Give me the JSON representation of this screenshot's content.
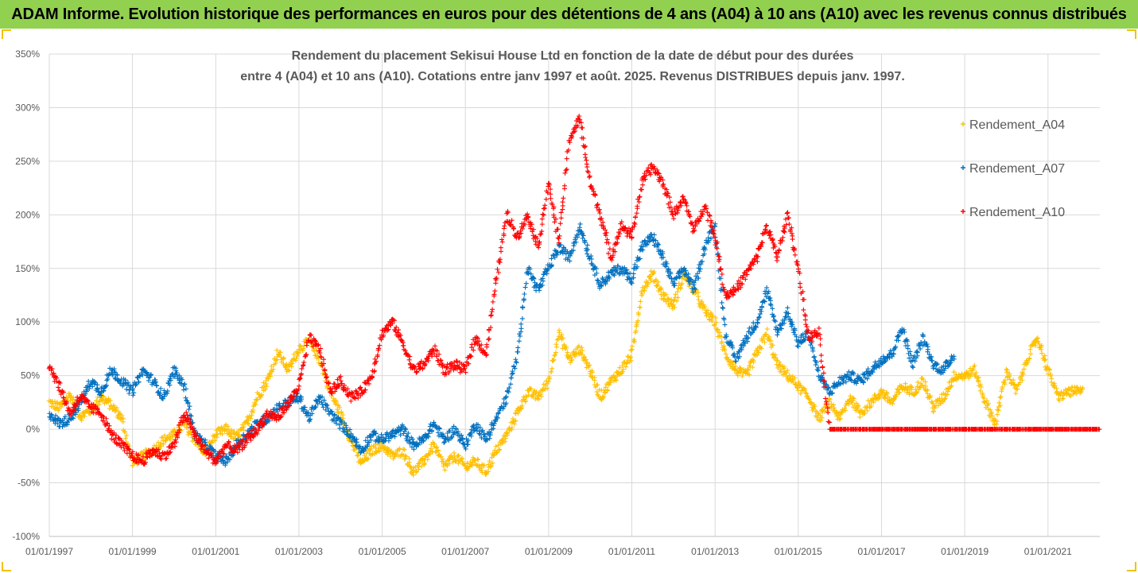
{
  "header": {
    "title": "ADAM Informe. Evolution historique des performances en euros pour des détentions de 4 ans (A04) à 10 ans (A10) avec les revenus connus distribués"
  },
  "colors": {
    "header_bg": "#92d050",
    "A04": "#ffc000",
    "A07": "#0070c0",
    "A10": "#ff0000",
    "grid": "#d9d9d9",
    "axis_text": "#595959"
  },
  "chart_data": {
    "type": "scatter",
    "marker": "plus",
    "title_line1": "Rendement du placement Sekisui House Ltd en fonction de la date de début pour des durées",
    "title_line2": "entre 4 (A04) et 10 ans (A10). Cotations entre janv 1997 et août. 2025. Revenus DISTRIBUES depuis janv. 1997.",
    "xlabel": "",
    "ylabel": "",
    "x_range": [
      "1997-01-01",
      "2022-04-01"
    ],
    "ylim": [
      -1.0,
      3.5
    ],
    "y_tick_labels": [
      "350%",
      "300%",
      "250%",
      "200%",
      "150%",
      "100%",
      "50%",
      "0%",
      "-50%",
      "-100%"
    ],
    "x_tick_labels": [
      "01/01/1997",
      "01/01/1999",
      "01/01/2001",
      "01/01/2003",
      "01/01/2005",
      "01/01/2007",
      "01/01/2009",
      "01/01/2011",
      "01/01/2013",
      "01/01/2015",
      "01/01/2017",
      "01/01/2019",
      "01/01/2021"
    ],
    "grid": true,
    "legend_position": "right",
    "series": [
      {
        "name": "Rendement_A04",
        "end": "2021-11-01",
        "points": [
          [
            "1997-01-01",
            0.25
          ],
          [
            "1997-04-01",
            0.2
          ],
          [
            "1997-07-01",
            0.32
          ],
          [
            "1997-10-01",
            0.12
          ],
          [
            "1998-01-01",
            0.18
          ],
          [
            "1998-04-01",
            0.3
          ],
          [
            "1998-07-01",
            0.22
          ],
          [
            "1998-10-01",
            0.1
          ],
          [
            "1999-01-01",
            -0.32
          ],
          [
            "1999-04-01",
            -0.25
          ],
          [
            "1999-07-01",
            -0.2
          ],
          [
            "1999-10-01",
            -0.1
          ],
          [
            "2000-01-01",
            -0.05
          ],
          [
            "2000-04-01",
            0.05
          ],
          [
            "2000-07-01",
            -0.1
          ],
          [
            "2000-10-01",
            -0.22
          ],
          [
            "2001-01-01",
            -0.05
          ],
          [
            "2001-04-01",
            0.0
          ],
          [
            "2001-07-01",
            -0.08
          ],
          [
            "2001-10-01",
            0.05
          ],
          [
            "2002-01-01",
            0.3
          ],
          [
            "2002-04-01",
            0.45
          ],
          [
            "2002-07-01",
            0.72
          ],
          [
            "2002-10-01",
            0.55
          ],
          [
            "2003-01-01",
            0.75
          ],
          [
            "2003-04-01",
            0.82
          ],
          [
            "2003-07-01",
            0.65
          ],
          [
            "2003-10-01",
            0.35
          ],
          [
            "2004-01-01",
            0.15
          ],
          [
            "2004-04-01",
            -0.1
          ],
          [
            "2004-07-01",
            -0.32
          ],
          [
            "2004-10-01",
            -0.2
          ],
          [
            "2005-01-01",
            -0.15
          ],
          [
            "2005-04-01",
            -0.25
          ],
          [
            "2005-07-01",
            -0.2
          ],
          [
            "2005-10-01",
            -0.4
          ],
          [
            "2006-01-01",
            -0.3
          ],
          [
            "2006-04-01",
            -0.15
          ],
          [
            "2006-07-01",
            -0.35
          ],
          [
            "2006-10-01",
            -0.25
          ],
          [
            "2007-01-01",
            -0.35
          ],
          [
            "2007-04-01",
            -0.3
          ],
          [
            "2007-07-01",
            -0.4
          ],
          [
            "2007-10-01",
            -0.2
          ],
          [
            "2008-01-01",
            -0.05
          ],
          [
            "2008-04-01",
            0.15
          ],
          [
            "2008-07-01",
            0.35
          ],
          [
            "2008-10-01",
            0.3
          ],
          [
            "2009-01-01",
            0.45
          ],
          [
            "2009-04-01",
            0.9
          ],
          [
            "2009-07-01",
            0.65
          ],
          [
            "2009-10-01",
            0.75
          ],
          [
            "2010-01-01",
            0.55
          ],
          [
            "2010-04-01",
            0.3
          ],
          [
            "2010-07-01",
            0.45
          ],
          [
            "2010-10-01",
            0.55
          ],
          [
            "2011-01-01",
            0.7
          ],
          [
            "2011-04-01",
            1.3
          ],
          [
            "2011-07-01",
            1.45
          ],
          [
            "2011-10-01",
            1.25
          ],
          [
            "2012-01-01",
            1.15
          ],
          [
            "2012-04-01",
            1.45
          ],
          [
            "2012-07-01",
            1.3
          ],
          [
            "2012-10-01",
            1.1
          ],
          [
            "2013-01-01",
            1.0
          ],
          [
            "2013-04-01",
            0.7
          ],
          [
            "2013-07-01",
            0.55
          ],
          [
            "2013-10-01",
            0.5
          ],
          [
            "2014-01-01",
            0.7
          ],
          [
            "2014-04-01",
            0.9
          ],
          [
            "2014-07-01",
            0.6
          ],
          [
            "2014-10-01",
            0.5
          ],
          [
            "2015-01-01",
            0.4
          ],
          [
            "2015-04-01",
            0.3
          ],
          [
            "2015-07-01",
            0.1
          ],
          [
            "2015-10-01",
            0.25
          ],
          [
            "2016-01-01",
            0.1
          ],
          [
            "2016-04-01",
            0.3
          ],
          [
            "2016-07-01",
            0.15
          ],
          [
            "2016-10-01",
            0.25
          ],
          [
            "2017-01-01",
            0.35
          ],
          [
            "2017-04-01",
            0.25
          ],
          [
            "2017-07-01",
            0.4
          ],
          [
            "2017-10-01",
            0.35
          ],
          [
            "2018-01-01",
            0.45
          ],
          [
            "2018-04-01",
            0.2
          ],
          [
            "2018-07-01",
            0.3
          ],
          [
            "2018-10-01",
            0.5
          ],
          [
            "2019-01-01",
            0.5
          ],
          [
            "2019-04-01",
            0.55
          ],
          [
            "2019-07-01",
            0.25
          ],
          [
            "2019-10-01",
            0.05
          ],
          [
            "2020-01-01",
            0.55
          ],
          [
            "2020-04-01",
            0.35
          ],
          [
            "2020-07-01",
            0.65
          ],
          [
            "2020-10-01",
            0.85
          ],
          [
            "2021-01-01",
            0.55
          ],
          [
            "2021-04-01",
            0.3
          ],
          [
            "2021-07-01",
            0.35
          ],
          [
            "2021-11-01",
            0.35
          ]
        ]
      },
      {
        "name": "Rendement_A07",
        "end": "2018-10-01",
        "points": [
          [
            "1997-01-01",
            0.15
          ],
          [
            "1997-04-01",
            0.05
          ],
          [
            "1997-07-01",
            0.1
          ],
          [
            "1997-10-01",
            0.25
          ],
          [
            "1998-01-01",
            0.45
          ],
          [
            "1998-04-01",
            0.35
          ],
          [
            "1998-07-01",
            0.55
          ],
          [
            "1998-10-01",
            0.45
          ],
          [
            "1999-01-01",
            0.35
          ],
          [
            "1999-04-01",
            0.55
          ],
          [
            "1999-07-01",
            0.45
          ],
          [
            "1999-10-01",
            0.3
          ],
          [
            "2000-01-01",
            0.55
          ],
          [
            "2000-04-01",
            0.4
          ],
          [
            "2000-07-01",
            -0.05
          ],
          [
            "2000-10-01",
            -0.15
          ],
          [
            "2001-01-01",
            -0.25
          ],
          [
            "2001-04-01",
            -0.3
          ],
          [
            "2001-07-01",
            -0.15
          ],
          [
            "2001-10-01",
            -0.05
          ],
          [
            "2002-01-01",
            0.05
          ],
          [
            "2002-04-01",
            0.1
          ],
          [
            "2002-07-01",
            0.2
          ],
          [
            "2002-10-01",
            0.25
          ],
          [
            "2003-01-01",
            0.3
          ],
          [
            "2003-04-01",
            0.1
          ],
          [
            "2003-07-01",
            0.3
          ],
          [
            "2003-10-01",
            0.15
          ],
          [
            "2004-01-01",
            0.05
          ],
          [
            "2004-04-01",
            -0.05
          ],
          [
            "2004-07-01",
            -0.2
          ],
          [
            "2004-10-01",
            -0.05
          ],
          [
            "2005-01-01",
            -0.1
          ],
          [
            "2005-04-01",
            -0.05
          ],
          [
            "2005-07-01",
            0.0
          ],
          [
            "2005-10-01",
            -0.15
          ],
          [
            "2006-01-01",
            -0.1
          ],
          [
            "2006-04-01",
            0.05
          ],
          [
            "2006-07-01",
            -0.1
          ],
          [
            "2006-10-01",
            0.0
          ],
          [
            "2007-01-01",
            -0.15
          ],
          [
            "2007-04-01",
            0.05
          ],
          [
            "2007-07-01",
            -0.1
          ],
          [
            "2007-10-01",
            0.1
          ],
          [
            "2008-01-01",
            0.3
          ],
          [
            "2008-04-01",
            0.7
          ],
          [
            "2008-07-01",
            1.5
          ],
          [
            "2008-10-01",
            1.3
          ],
          [
            "2009-01-01",
            1.5
          ],
          [
            "2009-04-01",
            1.7
          ],
          [
            "2009-07-01",
            1.6
          ],
          [
            "2009-10-01",
            1.9
          ],
          [
            "2010-01-01",
            1.6
          ],
          [
            "2010-04-01",
            1.35
          ],
          [
            "2010-07-01",
            1.45
          ],
          [
            "2010-10-01",
            1.5
          ],
          [
            "2011-01-01",
            1.4
          ],
          [
            "2011-04-01",
            1.7
          ],
          [
            "2011-07-01",
            1.8
          ],
          [
            "2011-10-01",
            1.6
          ],
          [
            "2012-01-01",
            1.35
          ],
          [
            "2012-04-01",
            1.5
          ],
          [
            "2012-07-01",
            1.3
          ],
          [
            "2012-10-01",
            1.7
          ],
          [
            "2013-01-01",
            1.9
          ],
          [
            "2013-04-01",
            0.9
          ],
          [
            "2013-07-01",
            0.65
          ],
          [
            "2013-10-01",
            0.85
          ],
          [
            "2014-01-01",
            1.0
          ],
          [
            "2014-04-01",
            1.3
          ],
          [
            "2014-07-01",
            0.9
          ],
          [
            "2014-10-01",
            1.1
          ],
          [
            "2015-01-01",
            0.8
          ],
          [
            "2015-04-01",
            0.9
          ],
          [
            "2015-07-01",
            0.5
          ],
          [
            "2015-10-01",
            0.35
          ],
          [
            "2016-01-01",
            0.45
          ],
          [
            "2016-04-01",
            0.5
          ],
          [
            "2016-07-01",
            0.45
          ],
          [
            "2016-10-01",
            0.55
          ],
          [
            "2017-01-01",
            0.65
          ],
          [
            "2017-04-01",
            0.7
          ],
          [
            "2017-07-01",
            0.95
          ],
          [
            "2017-10-01",
            0.6
          ],
          [
            "2018-01-01",
            0.85
          ],
          [
            "2018-04-01",
            0.6
          ],
          [
            "2018-07-01",
            0.55
          ],
          [
            "2018-10-01",
            0.7
          ]
        ]
      },
      {
        "name": "Rendement_A10",
        "end": "2022-04-01",
        "points": [
          [
            "1997-01-01",
            0.6
          ],
          [
            "1997-04-01",
            0.4
          ],
          [
            "1997-07-01",
            0.15
          ],
          [
            "1997-10-01",
            0.3
          ],
          [
            "1998-01-01",
            0.2
          ],
          [
            "1998-04-01",
            0.15
          ],
          [
            "1998-07-01",
            -0.05
          ],
          [
            "1998-10-01",
            -0.15
          ],
          [
            "1999-01-01",
            -0.25
          ],
          [
            "1999-04-01",
            -0.3
          ],
          [
            "1999-07-01",
            -0.2
          ],
          [
            "1999-10-01",
            -0.25
          ],
          [
            "2000-01-01",
            -0.15
          ],
          [
            "2000-04-01",
            0.15
          ],
          [
            "2000-07-01",
            -0.05
          ],
          [
            "2000-10-01",
            -0.2
          ],
          [
            "2001-01-01",
            -0.3
          ],
          [
            "2001-04-01",
            -0.15
          ],
          [
            "2001-07-01",
            -0.2
          ],
          [
            "2001-10-01",
            -0.1
          ],
          [
            "2002-01-01",
            0.0
          ],
          [
            "2002-04-01",
            0.15
          ],
          [
            "2002-07-01",
            0.1
          ],
          [
            "2002-10-01",
            0.25
          ],
          [
            "2003-01-01",
            0.4
          ],
          [
            "2003-04-01",
            0.85
          ],
          [
            "2003-07-01",
            0.75
          ],
          [
            "2003-10-01",
            0.35
          ],
          [
            "2004-01-01",
            0.45
          ],
          [
            "2004-04-01",
            0.3
          ],
          [
            "2004-07-01",
            0.35
          ],
          [
            "2004-10-01",
            0.5
          ],
          [
            "2005-01-01",
            0.9
          ],
          [
            "2005-04-01",
            1.0
          ],
          [
            "2005-07-01",
            0.8
          ],
          [
            "2005-10-01",
            0.55
          ],
          [
            "2006-01-01",
            0.6
          ],
          [
            "2006-04-01",
            0.75
          ],
          [
            "2006-07-01",
            0.55
          ],
          [
            "2006-10-01",
            0.6
          ],
          [
            "2007-01-01",
            0.55
          ],
          [
            "2007-04-01",
            0.85
          ],
          [
            "2007-07-01",
            0.7
          ],
          [
            "2007-10-01",
            1.4
          ],
          [
            "2008-01-01",
            2.0
          ],
          [
            "2008-04-01",
            1.8
          ],
          [
            "2008-07-01",
            2.0
          ],
          [
            "2008-10-01",
            1.7
          ],
          [
            "2009-01-01",
            2.3
          ],
          [
            "2009-04-01",
            1.75
          ],
          [
            "2009-07-01",
            2.7
          ],
          [
            "2009-10-01",
            2.9
          ],
          [
            "2010-01-01",
            2.3
          ],
          [
            "2010-04-01",
            2.0
          ],
          [
            "2010-07-01",
            1.6
          ],
          [
            "2010-10-01",
            1.9
          ],
          [
            "2011-01-01",
            1.8
          ],
          [
            "2011-04-01",
            2.3
          ],
          [
            "2011-07-01",
            2.45
          ],
          [
            "2011-10-01",
            2.3
          ],
          [
            "2012-01-01",
            2.0
          ],
          [
            "2012-04-01",
            2.15
          ],
          [
            "2012-07-01",
            1.85
          ],
          [
            "2012-10-01",
            2.1
          ],
          [
            "2013-01-01",
            1.8
          ],
          [
            "2013-04-01",
            1.25
          ],
          [
            "2013-07-01",
            1.3
          ],
          [
            "2013-10-01",
            1.45
          ],
          [
            "2014-01-01",
            1.6
          ],
          [
            "2014-04-01",
            1.9
          ],
          [
            "2014-07-01",
            1.6
          ],
          [
            "2014-10-01",
            2.0
          ],
          [
            "2015-01-01",
            1.5
          ],
          [
            "2015-04-01",
            0.85
          ],
          [
            "2015-07-01",
            0.9
          ],
          [
            "2015-10-01",
            0.0
          ],
          [
            "2022-04-01",
            0.0
          ]
        ]
      }
    ]
  }
}
